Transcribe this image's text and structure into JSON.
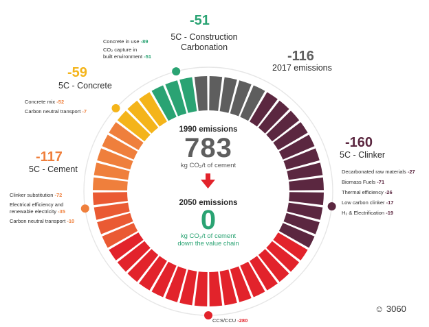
{
  "colors": {
    "green": "#2aa373",
    "yellow": "#f4b41a",
    "orange": "#ef7f3c",
    "orange_red": "#ea5a33",
    "red": "#e2232b",
    "gray": "#5e5e5e",
    "plum": "#5b2740",
    "ring": "#e3e3e3"
  },
  "center": {
    "y1990_label": "1990 emissions",
    "y1990_value": "783",
    "unit": "kg CO₂/t of cement",
    "arrow_icon": "red-down-arrow-icon",
    "y2050_label": "2050 emissions",
    "y2050_value": "0",
    "y2050_unit_line1": "kg CO₂/t of cement",
    "y2050_unit_line2": "down the value chain"
  },
  "stages": {
    "construction": {
      "value": "-51",
      "label_line1": "5C - Construction",
      "label_line2": "Carbonation",
      "items": [
        {
          "text": "Concrete in use",
          "value": "-89"
        },
        {
          "text": "CO₂ capture in",
          "value": ""
        },
        {
          "text": "built environment",
          "value": "-51"
        }
      ]
    },
    "y2017": {
      "value": "-116",
      "label": "2017 emissions"
    },
    "concrete": {
      "value": "-59",
      "label": "5C - Concrete",
      "items": [
        {
          "text": "Concrete mix",
          "value": "-52"
        },
        {
          "text": "Carbon neutral transport",
          "value": "-7"
        }
      ]
    },
    "clinker": {
      "value": "-160",
      "label": "5C - Clinker",
      "items": [
        {
          "text": "Decarbonated raw materials",
          "value": "-27"
        },
        {
          "text": "Biomass Fuels",
          "value": "-71"
        },
        {
          "text": "Thermal efficiency",
          "value": "-26"
        },
        {
          "text": "Low carbon clinker",
          "value": "-17"
        },
        {
          "text": "H₂ & Electrification",
          "value": "-19"
        }
      ]
    },
    "cement": {
      "value": "-117",
      "label": "5C - Cement",
      "items": [
        {
          "text": "Clinker substitution",
          "value": "-72"
        },
        {
          "text": "Electrical efficiency and",
          "value": ""
        },
        {
          "text": "renewable electricity",
          "value": "-35"
        },
        {
          "text": "Carbon neutral transport",
          "value": "-10"
        }
      ]
    },
    "ccus": {
      "text": "CCS/CCU",
      "value": "-280"
    }
  },
  "watermark": "3060"
}
